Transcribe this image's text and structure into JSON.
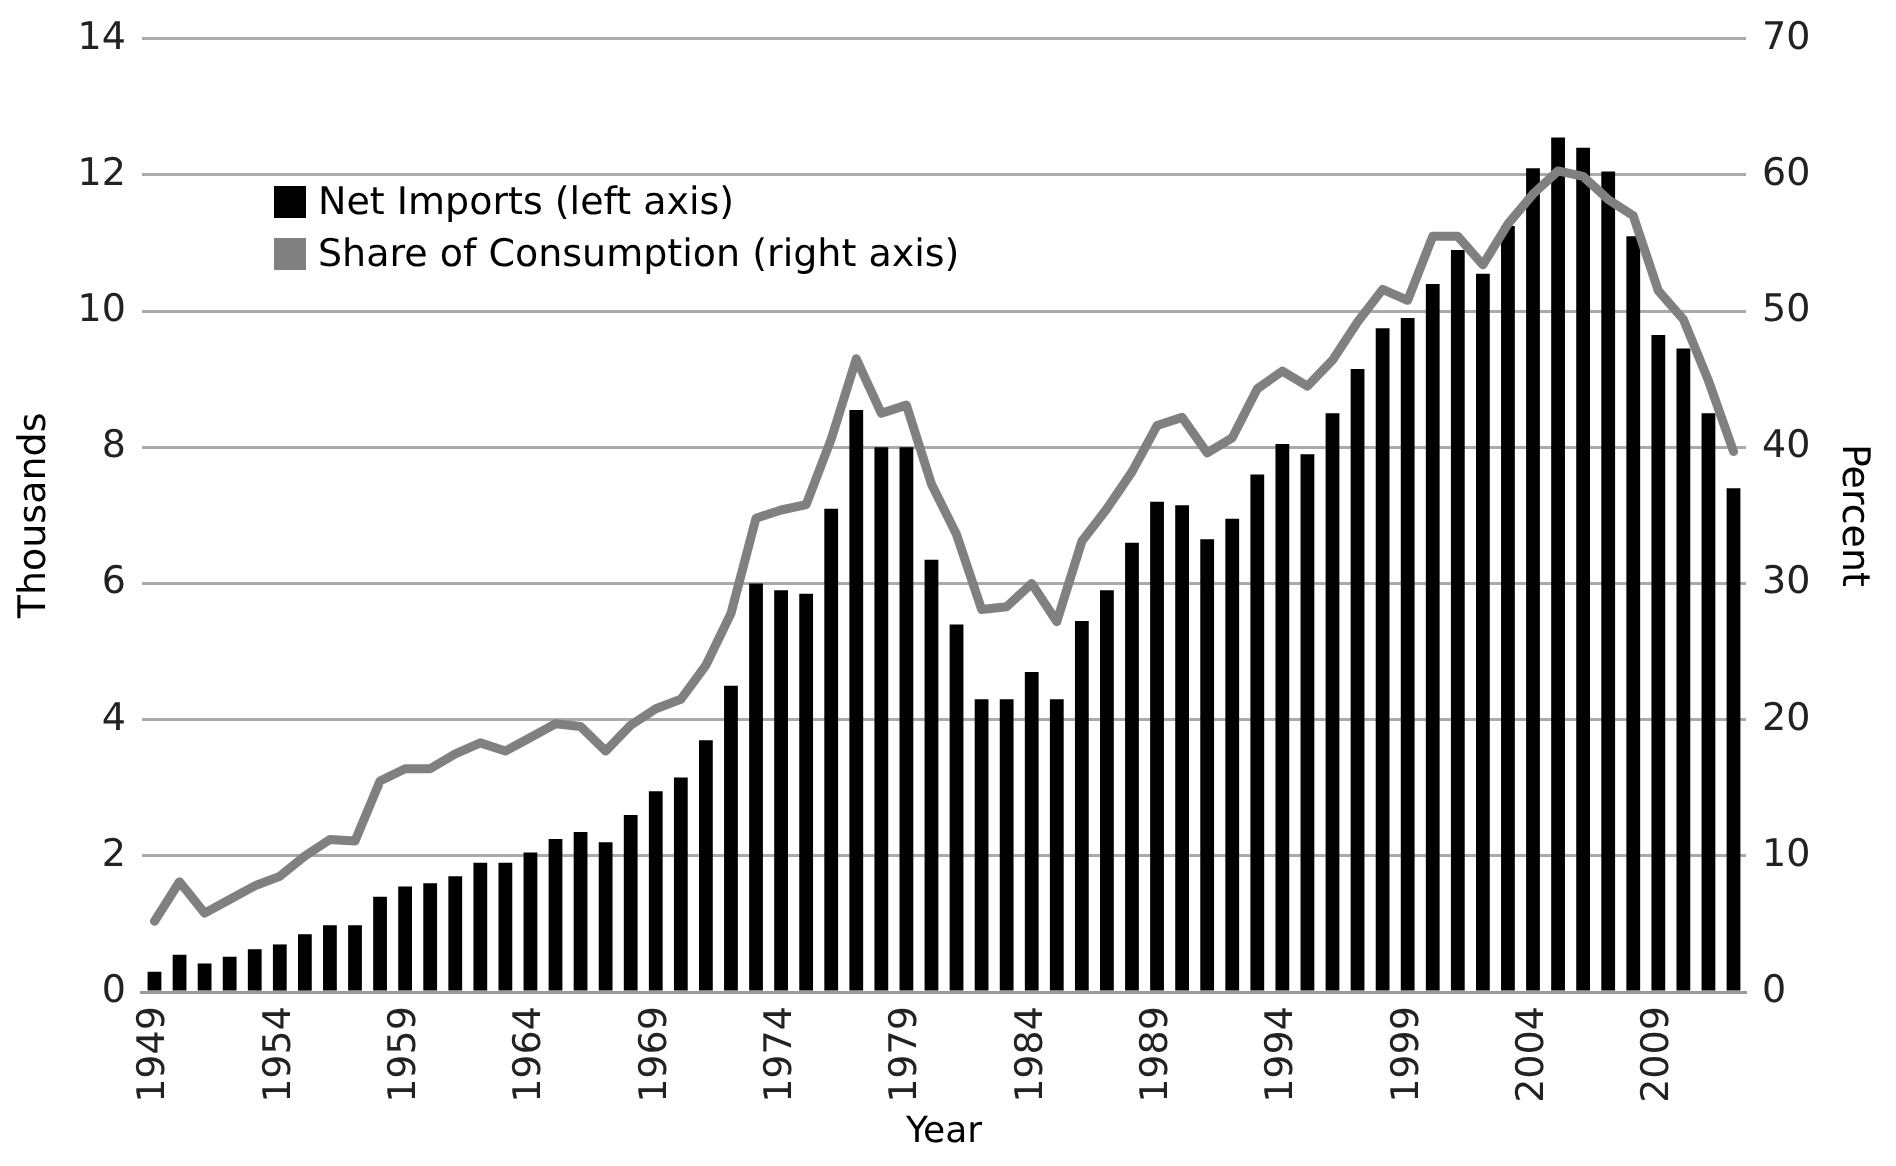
{
  "chart_data": {
    "type": "bar",
    "xlabel": "Year",
    "ylabel": "Thousands",
    "y2label": "Percent",
    "categories": [
      "1949",
      null,
      null,
      null,
      null,
      "1954",
      null,
      null,
      null,
      null,
      "1959",
      null,
      null,
      null,
      null,
      "1964",
      null,
      null,
      null,
      null,
      "1969",
      null,
      null,
      null,
      null,
      "1974",
      null,
      null,
      null,
      null,
      "1979",
      null,
      null,
      null,
      null,
      "1984",
      null,
      null,
      null,
      null,
      "1989",
      null,
      null,
      null,
      null,
      "1994",
      null,
      null,
      null,
      null,
      "1999",
      null,
      null,
      null,
      null,
      "2004",
      null,
      null,
      null,
      null,
      "2009",
      null,
      null,
      null
    ],
    "series": [
      {
        "name": "Net Imports (left axis)",
        "color": "#000000",
        "values": [
          0.3,
          0.55,
          0.42,
          0.52,
          0.63,
          0.7,
          0.85,
          0.98,
          0.98,
          1.4,
          1.55,
          1.6,
          1.7,
          1.9,
          1.9,
          2.05,
          2.25,
          2.35,
          2.2,
          2.6,
          2.95,
          3.15,
          3.7,
          4.5,
          6.0,
          5.9,
          5.85,
          7.1,
          8.55,
          8.0,
          8.0,
          6.35,
          5.4,
          4.3,
          4.3,
          4.7,
          4.3,
          5.45,
          5.9,
          6.6,
          7.2,
          7.15,
          6.65,
          6.95,
          7.6,
          8.05,
          7.9,
          8.5,
          9.15,
          9.75,
          9.9,
          10.4,
          10.9,
          10.55,
          11.25,
          12.1,
          12.55,
          12.4,
          12.05,
          11.1,
          9.65,
          9.45,
          8.5,
          7.4
        ]
      },
      {
        "name": "Share of Consumption (right axis)",
        "type": "line",
        "axis": "y2",
        "color": "#808080",
        "values": [
          5.2,
          8.1,
          5.8,
          6.8,
          7.8,
          8.5,
          10.0,
          11.2,
          11.1,
          15.5,
          16.4,
          16.4,
          17.5,
          18.3,
          17.7,
          18.7,
          19.7,
          19.5,
          17.7,
          19.6,
          20.8,
          21.5,
          24.0,
          27.8,
          34.8,
          35.4,
          35.8,
          40.6,
          46.5,
          42.5,
          43.1,
          37.3,
          33.6,
          28.1,
          28.3,
          30.0,
          27.2,
          33.1,
          35.5,
          38.2,
          41.6,
          42.2,
          39.6,
          40.7,
          44.3,
          45.6,
          44.5,
          46.4,
          49.2,
          51.6,
          50.8,
          55.5,
          55.5,
          53.4,
          56.4,
          58.6,
          60.3,
          59.9,
          58.2,
          57.0,
          51.5,
          49.4,
          44.9,
          39.7
        ]
      }
    ],
    "ylim": [
      0,
      14
    ],
    "yticks": [
      0,
      2,
      4,
      6,
      8,
      10,
      12,
      14
    ],
    "y2lim": [
      0,
      70
    ],
    "y2ticks": [
      0,
      10,
      20,
      30,
      40,
      50,
      60,
      70
    ],
    "grid": "y",
    "legend": "top left",
    "marker": "none",
    "line_style": "solid"
  }
}
